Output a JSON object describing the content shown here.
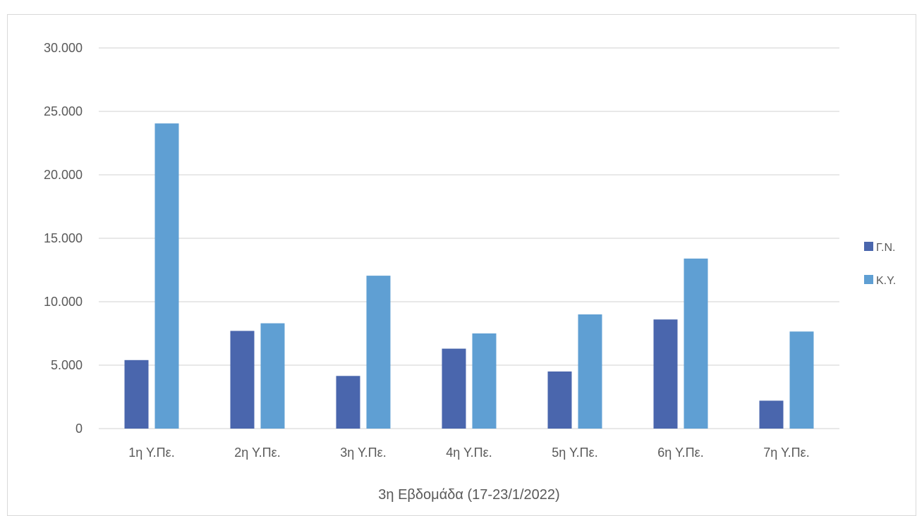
{
  "chart_data": {
    "type": "bar",
    "title": "",
    "xlabel": "3η Εβδομάδα (17-23/1/2022)",
    "ylabel": "",
    "categories": [
      "1η Υ.Πε.",
      "2η Υ.Πε.",
      "3η Υ.Πε.",
      "4η Υ.Πε.",
      "5η Υ.Πε.",
      "6η Υ.Πε.",
      "7η Υ.Πε."
    ],
    "series": [
      {
        "name": "Γ.Ν.",
        "color": "#4a66ad",
        "values": [
          5400,
          7700,
          4150,
          6300,
          4500,
          8600,
          2200
        ]
      },
      {
        "name": "Κ.Υ.",
        "color": "#5f9fd3",
        "values": [
          24050,
          8300,
          12050,
          7500,
          9000,
          13400,
          7650
        ]
      }
    ],
    "ylim": [
      0,
      30000
    ],
    "yticks": [
      "0",
      "5.000",
      "10.000",
      "15.000",
      "20.000",
      "25.000",
      "30.000"
    ],
    "grid": true,
    "legend_position": "right",
    "gridline_color": "#d9d9d9"
  }
}
